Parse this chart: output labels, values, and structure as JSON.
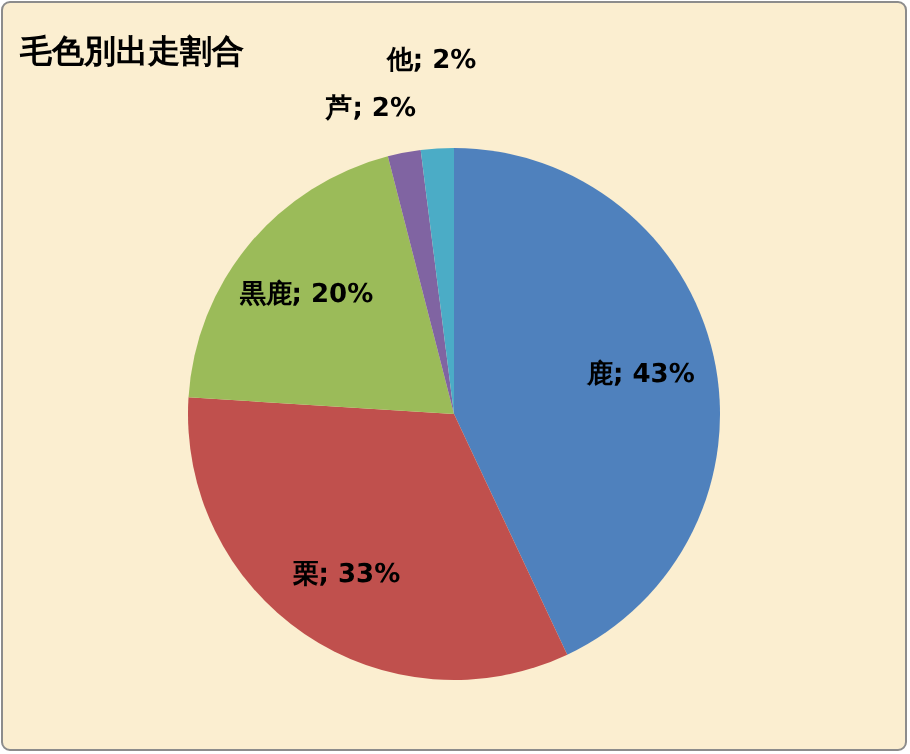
{
  "chart_data": {
    "type": "pie",
    "title": "毛色別出走割合",
    "categories": [
      "鹿",
      "栗",
      "黒鹿",
      "芦",
      "他"
    ],
    "values": [
      43,
      33,
      20,
      2,
      2
    ],
    "colors": [
      "#4f81bd",
      "#c0504d",
      "#9bbb59",
      "#8064a2",
      "#4bacc6"
    ],
    "value_labels": [
      "43%",
      "33%",
      "20%",
      "2%",
      "2%"
    ]
  }
}
